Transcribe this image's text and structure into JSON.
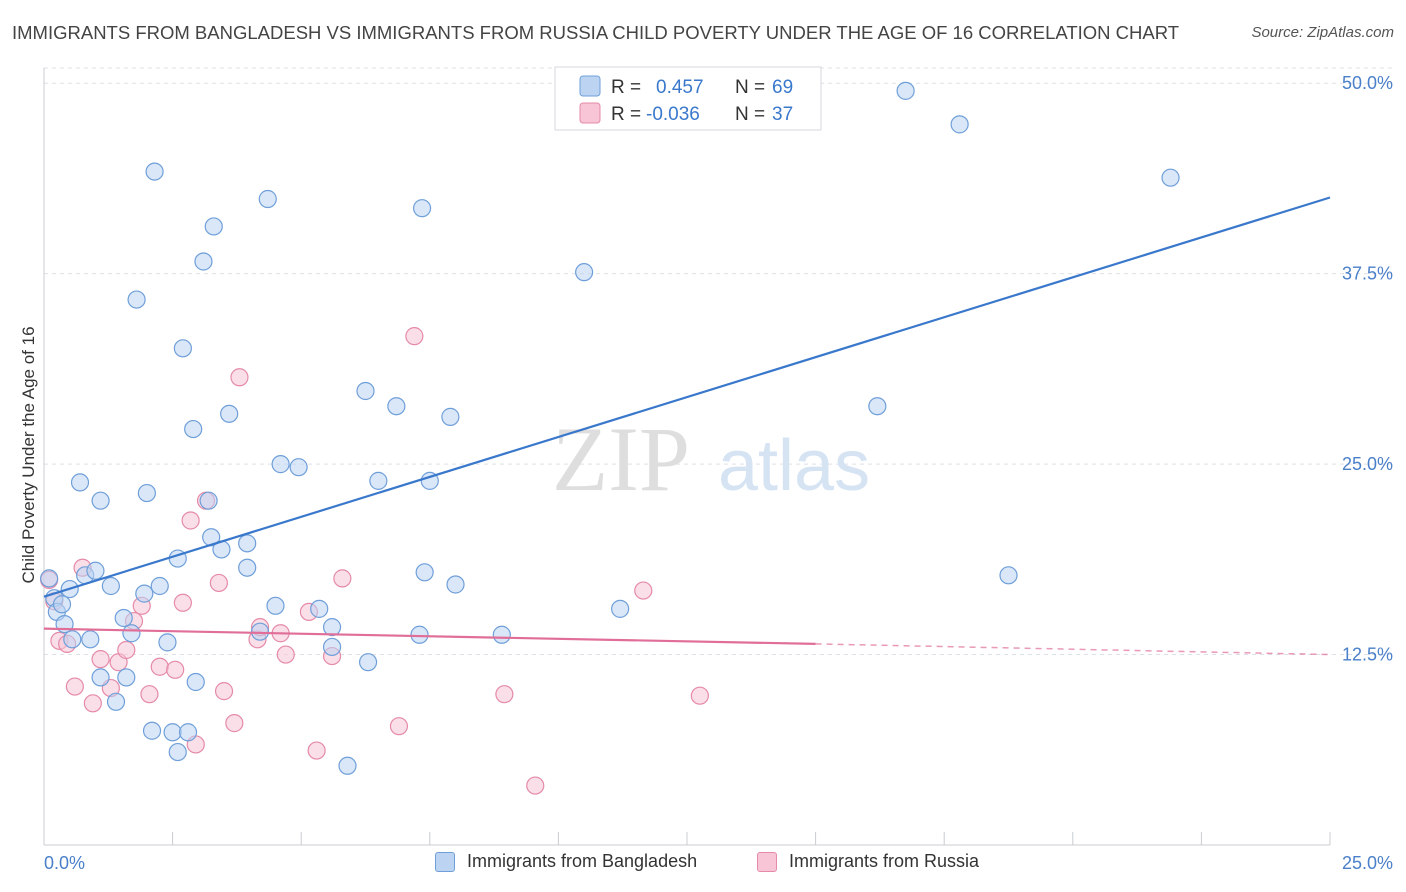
{
  "title": "IMMIGRANTS FROM BANGLADESH VS IMMIGRANTS FROM RUSSIA CHILD POVERTY UNDER THE AGE OF 16 CORRELATION CHART",
  "source": "Source: ZipAtlas.com",
  "watermark": {
    "zip": "ZIP",
    "atlas": "atlas"
  },
  "colors": {
    "blue_fill": "#bcd4f2",
    "blue_stroke": "#6f9fd9",
    "blue_line": "#3a78cc",
    "pink_fill": "#f7c5d5",
    "pink_stroke": "#e58aa8",
    "pink_line": "#e06e98",
    "tick_text": "#4a7fc9",
    "grid": "#dde0e6"
  },
  "legend_box": {
    "rows": [
      {
        "r_label": "R =",
        "r_value": "0.457",
        "n_label": "N =",
        "n_value": "69"
      },
      {
        "r_label": "R =",
        "r_value": "-0.036",
        "n_label": "N =",
        "n_value": "37"
      }
    ]
  },
  "bottom_legend": [
    "Immigrants from Bangladesh",
    "Immigrants from Russia"
  ],
  "chart_data": {
    "type": "scatter",
    "title": "IMMIGRANTS FROM BANGLADESH VS IMMIGRANTS FROM RUSSIA CHILD POVERTY UNDER THE AGE OF 16 CORRELATION CHART",
    "xlabel": "",
    "ylabel": "Child Poverty Under the Age of 16",
    "xlim": [
      0,
      25
    ],
    "ylim": [
      0,
      51
    ],
    "x_tick_labels": [
      "0.0%",
      "25.0%"
    ],
    "y_ticks": [
      12.5,
      25.0,
      37.5,
      50.0
    ],
    "y_tick_labels": [
      "12.5%",
      "25.0%",
      "37.5%",
      "50.0%"
    ],
    "grid": true,
    "legend_position": "top-center",
    "series": [
      {
        "name": "Immigrants from Bangladesh",
        "color": "#6f9fd9",
        "trend": {
          "x": [
            0,
            25
          ],
          "y": [
            16.3,
            42.5
          ]
        },
        "points": [
          [
            0.1,
            17.5
          ],
          [
            0.2,
            16.2
          ],
          [
            0.25,
            15.3
          ],
          [
            0.35,
            15.8
          ],
          [
            0.4,
            14.5
          ],
          [
            0.5,
            16.8
          ],
          [
            0.55,
            13.5
          ],
          [
            0.7,
            23.8
          ],
          [
            0.8,
            17.7
          ],
          [
            0.9,
            13.5
          ],
          [
            1.0,
            18.0
          ],
          [
            1.1,
            22.6
          ],
          [
            1.3,
            17.0
          ],
          [
            1.1,
            11.0
          ],
          [
            1.4,
            9.4
          ],
          [
            1.55,
            14.9
          ],
          [
            1.6,
            11.0
          ],
          [
            1.7,
            13.9
          ],
          [
            1.8,
            35.8
          ],
          [
            1.95,
            16.5
          ],
          [
            2.0,
            23.1
          ],
          [
            2.1,
            7.5
          ],
          [
            2.15,
            44.2
          ],
          [
            2.25,
            17.0
          ],
          [
            2.4,
            13.3
          ],
          [
            2.5,
            7.4
          ],
          [
            2.6,
            18.8
          ],
          [
            2.6,
            6.1
          ],
          [
            2.7,
            32.6
          ],
          [
            2.8,
            7.4
          ],
          [
            2.9,
            27.3
          ],
          [
            2.95,
            10.7
          ],
          [
            3.1,
            38.3
          ],
          [
            3.2,
            22.6
          ],
          [
            3.25,
            20.2
          ],
          [
            3.3,
            40.6
          ],
          [
            3.45,
            19.4
          ],
          [
            3.6,
            28.3
          ],
          [
            3.95,
            19.8
          ],
          [
            3.95,
            18.2
          ],
          [
            4.2,
            14.0
          ],
          [
            4.35,
            42.4
          ],
          [
            4.5,
            15.7
          ],
          [
            4.6,
            25.0
          ],
          [
            4.95,
            24.8
          ],
          [
            5.35,
            15.5
          ],
          [
            5.6,
            14.3
          ],
          [
            5.6,
            13.0
          ],
          [
            5.9,
            5.2
          ],
          [
            6.25,
            29.8
          ],
          [
            6.3,
            12.0
          ],
          [
            6.5,
            23.9
          ],
          [
            6.85,
            28.8
          ],
          [
            7.3,
            13.8
          ],
          [
            7.35,
            41.8
          ],
          [
            7.4,
            17.9
          ],
          [
            7.5,
            23.9
          ],
          [
            7.9,
            28.1
          ],
          [
            8.0,
            17.1
          ],
          [
            8.9,
            13.8
          ],
          [
            10.5,
            37.6
          ],
          [
            11.2,
            15.5
          ],
          [
            16.2,
            28.8
          ],
          [
            16.75,
            49.5
          ],
          [
            17.8,
            47.3
          ],
          [
            18.75,
            17.7
          ],
          [
            21.9,
            43.8
          ]
        ]
      },
      {
        "name": "Immigrants from Russia",
        "color": "#e58aa8",
        "trend": {
          "x": [
            0,
            15
          ],
          "y": [
            14.2,
            13.2
          ]
        },
        "trend_dashed": {
          "x": [
            15,
            25
          ],
          "y": [
            13.2,
            12.5
          ]
        },
        "points": [
          [
            0.1,
            17.4
          ],
          [
            0.2,
            16.0
          ],
          [
            0.3,
            13.4
          ],
          [
            0.45,
            13.2
          ],
          [
            0.6,
            10.4
          ],
          [
            0.75,
            18.2
          ],
          [
            0.95,
            9.3
          ],
          [
            1.1,
            12.2
          ],
          [
            1.3,
            10.3
          ],
          [
            1.45,
            12.0
          ],
          [
            1.6,
            12.8
          ],
          [
            1.75,
            14.7
          ],
          [
            1.9,
            15.7
          ],
          [
            2.05,
            9.9
          ],
          [
            2.25,
            11.7
          ],
          [
            2.55,
            11.5
          ],
          [
            2.7,
            15.9
          ],
          [
            2.85,
            21.3
          ],
          [
            2.95,
            6.6
          ],
          [
            3.15,
            22.6
          ],
          [
            3.4,
            17.2
          ],
          [
            3.5,
            10.1
          ],
          [
            3.7,
            8.0
          ],
          [
            3.8,
            30.7
          ],
          [
            4.15,
            13.5
          ],
          [
            4.2,
            14.3
          ],
          [
            4.6,
            13.9
          ],
          [
            4.7,
            12.5
          ],
          [
            5.15,
            15.3
          ],
          [
            5.3,
            6.2
          ],
          [
            5.6,
            12.4
          ],
          [
            5.8,
            17.5
          ],
          [
            6.9,
            7.8
          ],
          [
            7.2,
            33.4
          ],
          [
            8.95,
            9.9
          ],
          [
            9.55,
            3.9
          ],
          [
            11.65,
            16.7
          ],
          [
            12.75,
            9.8
          ]
        ]
      }
    ]
  }
}
